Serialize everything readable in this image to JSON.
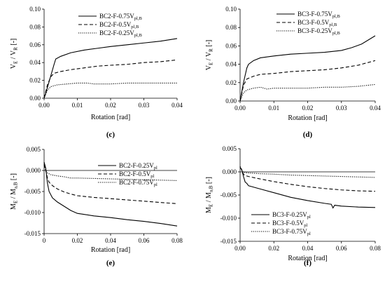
{
  "chart_data": [
    {
      "id": "c",
      "type": "line",
      "panel_label": "(c)",
      "xlabel": "Rotation [rad]",
      "ylabel_main": "V",
      "ylabel_sub1": "E",
      "ylabel_mid": " / V",
      "ylabel_sub2": "R",
      "ylabel_tail": " [-]",
      "xlim": [
        0,
        0.04
      ],
      "ylim": [
        0,
        0.1
      ],
      "xticks": [
        "0.00",
        "0.01",
        "0.02",
        "0.03",
        "0.04"
      ],
      "xtick_values": [
        0,
        0.01,
        0.02,
        0.03,
        0.04
      ],
      "yticks": [
        "0.00",
        "0.02",
        "0.04",
        "0.06",
        "0.08",
        "0.10"
      ],
      "ytick_values": [
        0,
        0.02,
        0.04,
        0.06,
        0.08,
        0.1
      ],
      "legend_position": "top-right",
      "series": [
        {
          "name": "BC2-F-0.75V",
          "name_sub": "pl,B",
          "style": "solid",
          "x": [
            0,
            0.001,
            0.002,
            0.003,
            0.0035,
            0.005,
            0.008,
            0.012,
            0.016,
            0.02,
            0.025,
            0.03,
            0.035,
            0.04
          ],
          "y": [
            0,
            0.012,
            0.025,
            0.038,
            0.044,
            0.047,
            0.051,
            0.054,
            0.056,
            0.058,
            0.06,
            0.062,
            0.064,
            0.067
          ]
        },
        {
          "name": "BC2-F-0.5V",
          "name_sub": "pl,B",
          "style": "dashed",
          "x": [
            0,
            0.001,
            0.002,
            0.003,
            0.005,
            0.008,
            0.012,
            0.016,
            0.02,
            0.025,
            0.03,
            0.035,
            0.04
          ],
          "y": [
            0,
            0.015,
            0.024,
            0.028,
            0.03,
            0.032,
            0.034,
            0.036,
            0.037,
            0.038,
            0.04,
            0.041,
            0.043
          ]
        },
        {
          "name": "BC2-F-0.25V",
          "name_sub": "pl,B",
          "style": "dotted",
          "x": [
            0,
            0.001,
            0.002,
            0.004,
            0.007,
            0.01,
            0.013,
            0.015,
            0.017,
            0.02,
            0.025,
            0.03,
            0.035,
            0.04
          ],
          "y": [
            0,
            0.009,
            0.013,
            0.015,
            0.016,
            0.017,
            0.017,
            0.016,
            0.016,
            0.016,
            0.017,
            0.017,
            0.017,
            0.017
          ]
        }
      ]
    },
    {
      "id": "d",
      "type": "line",
      "panel_label": "(d)",
      "xlabel": "Rotation [rad]",
      "ylabel_main": "V",
      "ylabel_sub1": "E",
      "ylabel_mid": " / V",
      "ylabel_sub2": "R",
      "ylabel_tail": " [-]",
      "xlim": [
        0,
        0.04
      ],
      "ylim": [
        0,
        0.1
      ],
      "xticks": [
        "0.00",
        "0.01",
        "0.02",
        "0.03",
        "0.04"
      ],
      "xtick_values": [
        0,
        0.01,
        0.02,
        0.03,
        0.04
      ],
      "yticks": [
        "0.00",
        "0.02",
        "0.04",
        "0.06",
        "0.08",
        "0.10"
      ],
      "ytick_values": [
        0,
        0.02,
        0.04,
        0.06,
        0.08,
        0.1
      ],
      "legend_position": "top-right",
      "series": [
        {
          "name": "BC3-F-0.75V",
          "name_sub": "pl,B",
          "style": "solid",
          "x": [
            0,
            0.001,
            0.002,
            0.0025,
            0.004,
            0.006,
            0.01,
            0.015,
            0.02,
            0.025,
            0.03,
            0.033,
            0.036,
            0.04
          ],
          "y": [
            0,
            0.02,
            0.036,
            0.04,
            0.044,
            0.047,
            0.049,
            0.051,
            0.052,
            0.053,
            0.055,
            0.058,
            0.062,
            0.071
          ]
        },
        {
          "name": "BC3-F-0.5V",
          "name_sub": "pl,B",
          "style": "dashed",
          "x": [
            0,
            0.001,
            0.002,
            0.004,
            0.006,
            0.01,
            0.015,
            0.02,
            0.025,
            0.03,
            0.035,
            0.04
          ],
          "y": [
            0,
            0.017,
            0.024,
            0.027,
            0.029,
            0.03,
            0.032,
            0.033,
            0.034,
            0.036,
            0.039,
            0.044
          ]
        },
        {
          "name": "BC3-F-0.25V",
          "name_sub": "pl,B",
          "style": "dotted",
          "x": [
            0,
            0.001,
            0.002,
            0.004,
            0.006,
            0.007,
            0.008,
            0.01,
            0.015,
            0.02,
            0.025,
            0.03,
            0.035,
            0.04
          ],
          "y": [
            0,
            0.009,
            0.012,
            0.014,
            0.015,
            0.014,
            0.013,
            0.014,
            0.014,
            0.014,
            0.015,
            0.015,
            0.016,
            0.018
          ]
        }
      ]
    },
    {
      "id": "e",
      "type": "line",
      "panel_label": "(e)",
      "xlabel": "Rotation [rad]",
      "ylabel_main": "M",
      "ylabel_sub1": "E",
      "ylabel_mid": " / M",
      "ylabel_sub2": "a,B",
      "ylabel_tail": " [-]",
      "xlim": [
        0,
        0.08
      ],
      "ylim": [
        -0.015,
        0.005
      ],
      "xticks": [
        "0",
        "0.02",
        "0.04",
        "0.06",
        "0.08"
      ],
      "xtick_values": [
        0,
        0.02,
        0.04,
        0.06,
        0.08
      ],
      "yticks": [
        "0.005",
        "0.000",
        "-0.005",
        "-0.010",
        "-0.015"
      ],
      "ytick_values": [
        0.005,
        0,
        -0.005,
        -0.01,
        -0.015
      ],
      "legend_position": "top-right",
      "series": [
        {
          "name": "BC2-F-0.25V",
          "name_sub": "pl",
          "style": "solid",
          "x": [
            0,
            0.001,
            0.002,
            0.003,
            0.005,
            0.008,
            0.012,
            0.016,
            0.02,
            0.03,
            0.04,
            0.05,
            0.06,
            0.07,
            0.08
          ],
          "y": [
            0.002,
            0.0005,
            -0.003,
            -0.005,
            -0.0065,
            -0.0075,
            -0.0085,
            -0.0095,
            -0.0102,
            -0.0108,
            -0.0112,
            -0.0117,
            -0.0121,
            -0.0126,
            -0.0132
          ]
        },
        {
          "name": "BC2-F-0.5V",
          "name_sub": "pl",
          "style": "dashed",
          "x": [
            0,
            0.001,
            0.002,
            0.003,
            0.005,
            0.008,
            0.012,
            0.016,
            0.02,
            0.03,
            0.04,
            0.05,
            0.06,
            0.07,
            0.08
          ],
          "y": [
            0.0015,
            0,
            -0.0018,
            -0.0028,
            -0.0036,
            -0.0044,
            -0.0051,
            -0.0056,
            -0.006,
            -0.0064,
            -0.0067,
            -0.007,
            -0.0073,
            -0.0076,
            -0.0079
          ]
        },
        {
          "name": "BC2-F-0.75V",
          "name_sub": "pl",
          "style": "dotted",
          "x": [
            0,
            0.001,
            0.002,
            0.004,
            0.008,
            0.012,
            0.016,
            0.02,
            0.03,
            0.04,
            0.05,
            0.06,
            0.07,
            0.08
          ],
          "y": [
            0.0012,
            0,
            -0.0006,
            -0.001,
            -0.0013,
            -0.0015,
            -0.0018,
            -0.0018,
            -0.0019,
            -0.002,
            -0.0021,
            -0.0022,
            -0.0023,
            -0.0024
          ]
        }
      ]
    },
    {
      "id": "f",
      "type": "line",
      "panel_label": "(f)",
      "xlabel": "Rotation [rad]",
      "ylabel_main": "M",
      "ylabel_sub1": "E",
      "ylabel_mid": " / M",
      "ylabel_sub2": "a,B",
      "ylabel_tail": " [-]",
      "xlim": [
        0,
        0.08
      ],
      "ylim": [
        -0.015,
        0.005
      ],
      "xticks": [
        "0.00",
        "0.02",
        "0.04",
        "0.06",
        "0.08"
      ],
      "xtick_values": [
        0,
        0.02,
        0.04,
        0.06,
        0.08
      ],
      "yticks": [
        "0.005",
        "0.000",
        "-0.005",
        "-0.010",
        "-0.015"
      ],
      "ytick_values": [
        0.005,
        0,
        -0.005,
        -0.01,
        -0.015
      ],
      "legend_position": "bottom-left",
      "series": [
        {
          "name": "BC3-F-0.25V",
          "name_sub": "pl",
          "style": "solid",
          "x": [
            0,
            0.001,
            0.002,
            0.003,
            0.004,
            0.005,
            0.01,
            0.02,
            0.03,
            0.04,
            0.05,
            0.054,
            0.055,
            0.056,
            0.06,
            0.07,
            0.08
          ],
          "y": [
            0.001,
            0.0005,
            -0.001,
            -0.0022,
            -0.0025,
            -0.003,
            -0.0035,
            -0.0045,
            -0.0055,
            -0.0062,
            -0.0068,
            -0.007,
            -0.0078,
            -0.0072,
            -0.0074,
            -0.0076,
            -0.0077
          ]
        },
        {
          "name": "BC3-F-0.5V",
          "name_sub": "pl",
          "style": "dashed",
          "x": [
            0,
            0.001,
            0.002,
            0.003,
            0.005,
            0.01,
            0.02,
            0.03,
            0.04,
            0.05,
            0.06,
            0.07,
            0.08
          ],
          "y": [
            0.001,
            0.0004,
            -0.0005,
            -0.0008,
            -0.001,
            -0.0014,
            -0.0021,
            -0.0027,
            -0.0032,
            -0.0036,
            -0.0039,
            -0.0041,
            -0.0042
          ]
        },
        {
          "name": "BC3-F-0.75V",
          "name_sub": "pl",
          "style": "dotted",
          "x": [
            0,
            0.001,
            0.002,
            0.004,
            0.008,
            0.012,
            0.02,
            0.03,
            0.04,
            0.05,
            0.06,
            0.07,
            0.08
          ],
          "y": [
            0.0012,
            0.0003,
            -0.0001,
            -0.0002,
            -0.0003,
            -0.0004,
            -0.0005,
            -0.0007,
            -0.0008,
            -0.0009,
            -0.001,
            -0.0011,
            -0.0012
          ]
        }
      ]
    }
  ]
}
